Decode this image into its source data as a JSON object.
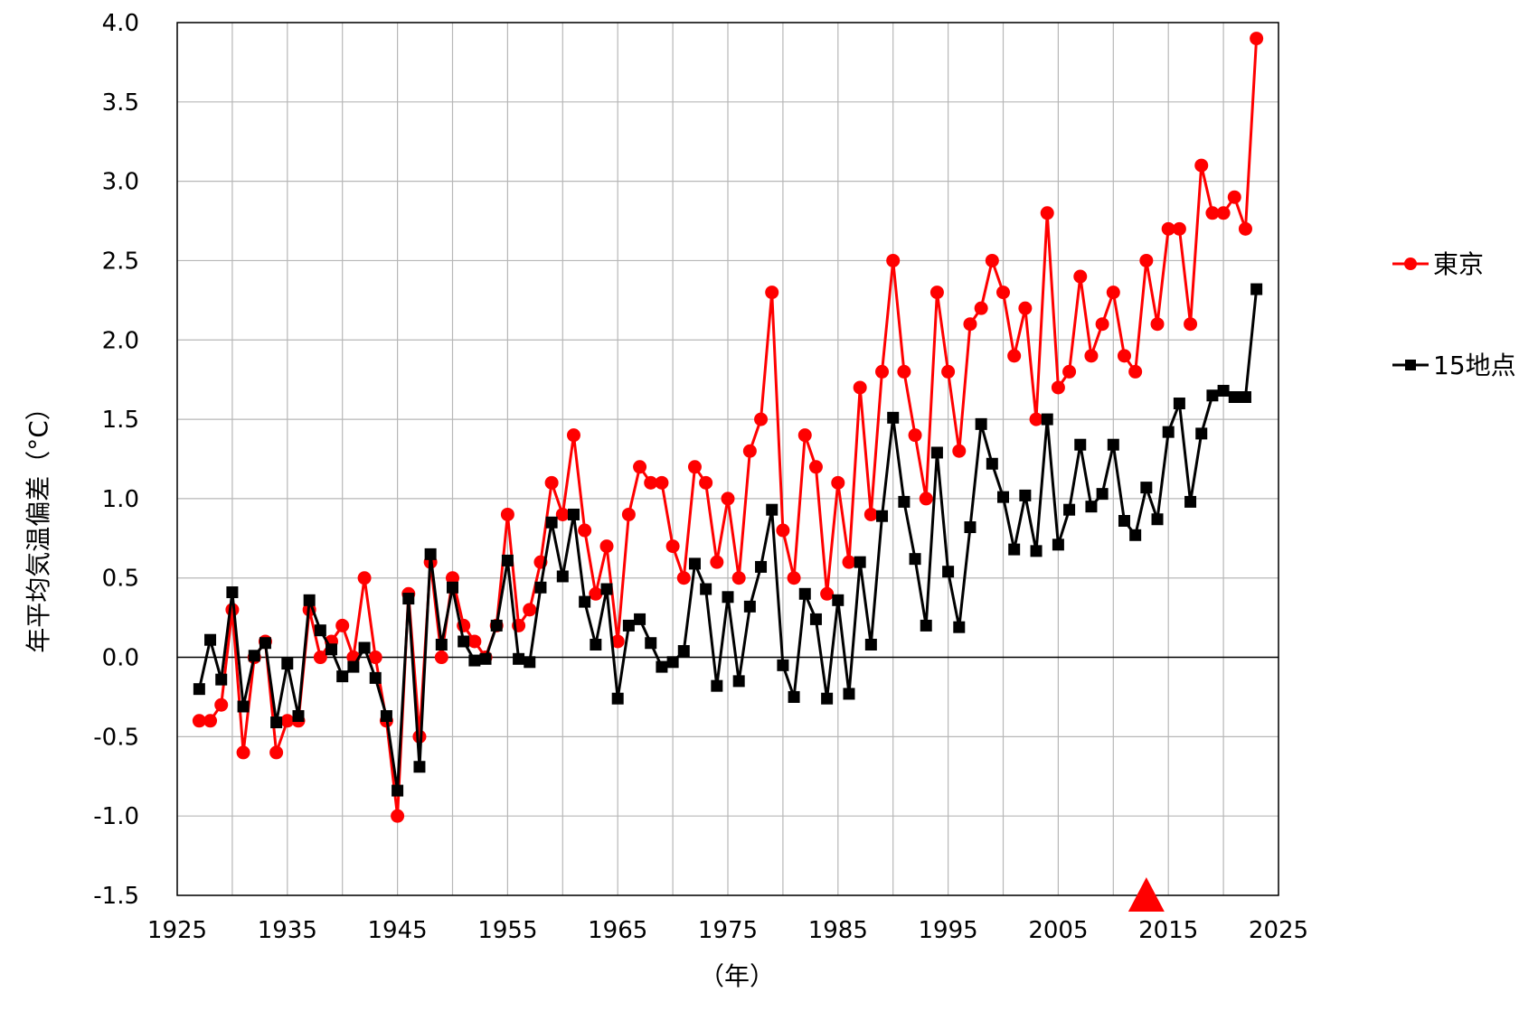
{
  "chart_data": {
    "type": "line",
    "title": "",
    "xlabel": "（年）",
    "ylabel": "年平均気温偏差（°C）",
    "xlim": [
      1925,
      2025
    ],
    "ylim": [
      -1.5,
      4.0
    ],
    "x_ticks": [
      1925,
      1935,
      1945,
      1955,
      1965,
      1975,
      1985,
      1995,
      2005,
      2015,
      2025
    ],
    "y_ticks": [
      -1.5,
      -1.0,
      -0.5,
      0.0,
      0.5,
      1.0,
      1.5,
      2.0,
      2.5,
      3.0,
      3.5,
      4.0
    ],
    "x_tick_labels": [
      "1925",
      "1935",
      "1945",
      "1955",
      "1965",
      "1975",
      "1985",
      "1995",
      "2005",
      "2015",
      "2025"
    ],
    "y_tick_labels": [
      "-1.5",
      "-1.0",
      "-0.5",
      "0.0",
      "0.5",
      "1.0",
      "1.5",
      "2.0",
      "2.5",
      "3.0",
      "3.5",
      "4.0"
    ],
    "grid": true,
    "legend_position": "right",
    "marker_year": 2013,
    "marker_color": "#ff0000",
    "x": [
      1927,
      1928,
      1929,
      1930,
      1931,
      1932,
      1933,
      1934,
      1935,
      1936,
      1937,
      1938,
      1939,
      1940,
      1941,
      1942,
      1943,
      1944,
      1945,
      1946,
      1947,
      1948,
      1949,
      1950,
      1951,
      1952,
      1953,
      1954,
      1955,
      1956,
      1957,
      1958,
      1959,
      1960,
      1961,
      1962,
      1963,
      1964,
      1965,
      1966,
      1967,
      1968,
      1969,
      1970,
      1971,
      1972,
      1973,
      1974,
      1975,
      1976,
      1977,
      1978,
      1979,
      1980,
      1981,
      1982,
      1983,
      1984,
      1985,
      1986,
      1987,
      1988,
      1989,
      1990,
      1991,
      1992,
      1993,
      1994,
      1995,
      1996,
      1997,
      1998,
      1999,
      2000,
      2001,
      2002,
      2003,
      2004,
      2005,
      2006,
      2007,
      2008,
      2009,
      2010,
      2011,
      2012,
      2013,
      2014,
      2015,
      2016,
      2017,
      2018,
      2019,
      2020,
      2021,
      2022,
      2023
    ],
    "series": [
      {
        "name": "東京",
        "color": "#ff0000",
        "marker": "circle",
        "values": [
          -0.4,
          -0.4,
          -0.3,
          0.3,
          -0.6,
          0.0,
          0.1,
          -0.6,
          -0.4,
          -0.4,
          0.3,
          0.0,
          0.1,
          0.2,
          0.0,
          0.5,
          0.0,
          -0.4,
          -1.0,
          0.4,
          -0.5,
          0.6,
          0.0,
          0.5,
          0.2,
          0.1,
          0.0,
          0.2,
          0.9,
          0.2,
          0.3,
          0.6,
          1.1,
          0.9,
          1.4,
          0.8,
          0.4,
          0.7,
          0.1,
          0.9,
          1.2,
          1.1,
          1.1,
          0.7,
          0.5,
          1.2,
          1.1,
          0.6,
          1.0,
          0.5,
          1.3,
          1.5,
          2.3,
          0.8,
          0.5,
          1.4,
          1.2,
          0.4,
          1.1,
          0.6,
          1.7,
          0.9,
          1.8,
          2.5,
          1.8,
          1.4,
          1.0,
          2.3,
          1.8,
          1.3,
          2.1,
          2.2,
          2.5,
          2.3,
          1.9,
          2.2,
          1.5,
          2.8,
          1.7,
          1.8,
          2.4,
          1.9,
          2.1,
          2.3,
          1.9,
          1.8,
          2.5,
          2.1,
          2.7,
          2.7,
          2.1,
          3.1,
          2.8,
          2.8,
          2.9,
          2.7,
          3.9
        ]
      },
      {
        "name": "15地点",
        "color": "#000000",
        "marker": "square",
        "values": [
          -0.2,
          0.11,
          -0.14,
          0.41,
          -0.31,
          0.01,
          0.09,
          -0.41,
          -0.04,
          -0.37,
          0.36,
          0.17,
          0.05,
          -0.12,
          -0.06,
          0.06,
          -0.13,
          -0.37,
          -0.84,
          0.37,
          -0.69,
          0.65,
          0.08,
          0.44,
          0.1,
          -0.02,
          -0.01,
          0.2,
          0.61,
          -0.01,
          -0.03,
          0.44,
          0.85,
          0.51,
          0.9,
          0.35,
          0.08,
          0.43,
          -0.26,
          0.2,
          0.24,
          0.09,
          -0.06,
          -0.03,
          0.04,
          0.59,
          0.43,
          -0.18,
          0.38,
          -0.15,
          0.32,
          0.57,
          0.93,
          -0.05,
          -0.25,
          0.4,
          0.24,
          -0.26,
          0.36,
          -0.23,
          0.6,
          0.08,
          0.89,
          1.51,
          0.98,
          0.62,
          0.2,
          1.29,
          0.54,
          0.19,
          0.82,
          1.47,
          1.22,
          1.01,
          0.68,
          1.02,
          0.67,
          1.5,
          0.71,
          0.93,
          1.34,
          0.95,
          1.03,
          1.34,
          0.86,
          0.77,
          1.07,
          0.87,
          1.42,
          1.6,
          0.98,
          1.41,
          1.65,
          1.68,
          1.64,
          1.64,
          2.32
        ]
      }
    ]
  }
}
